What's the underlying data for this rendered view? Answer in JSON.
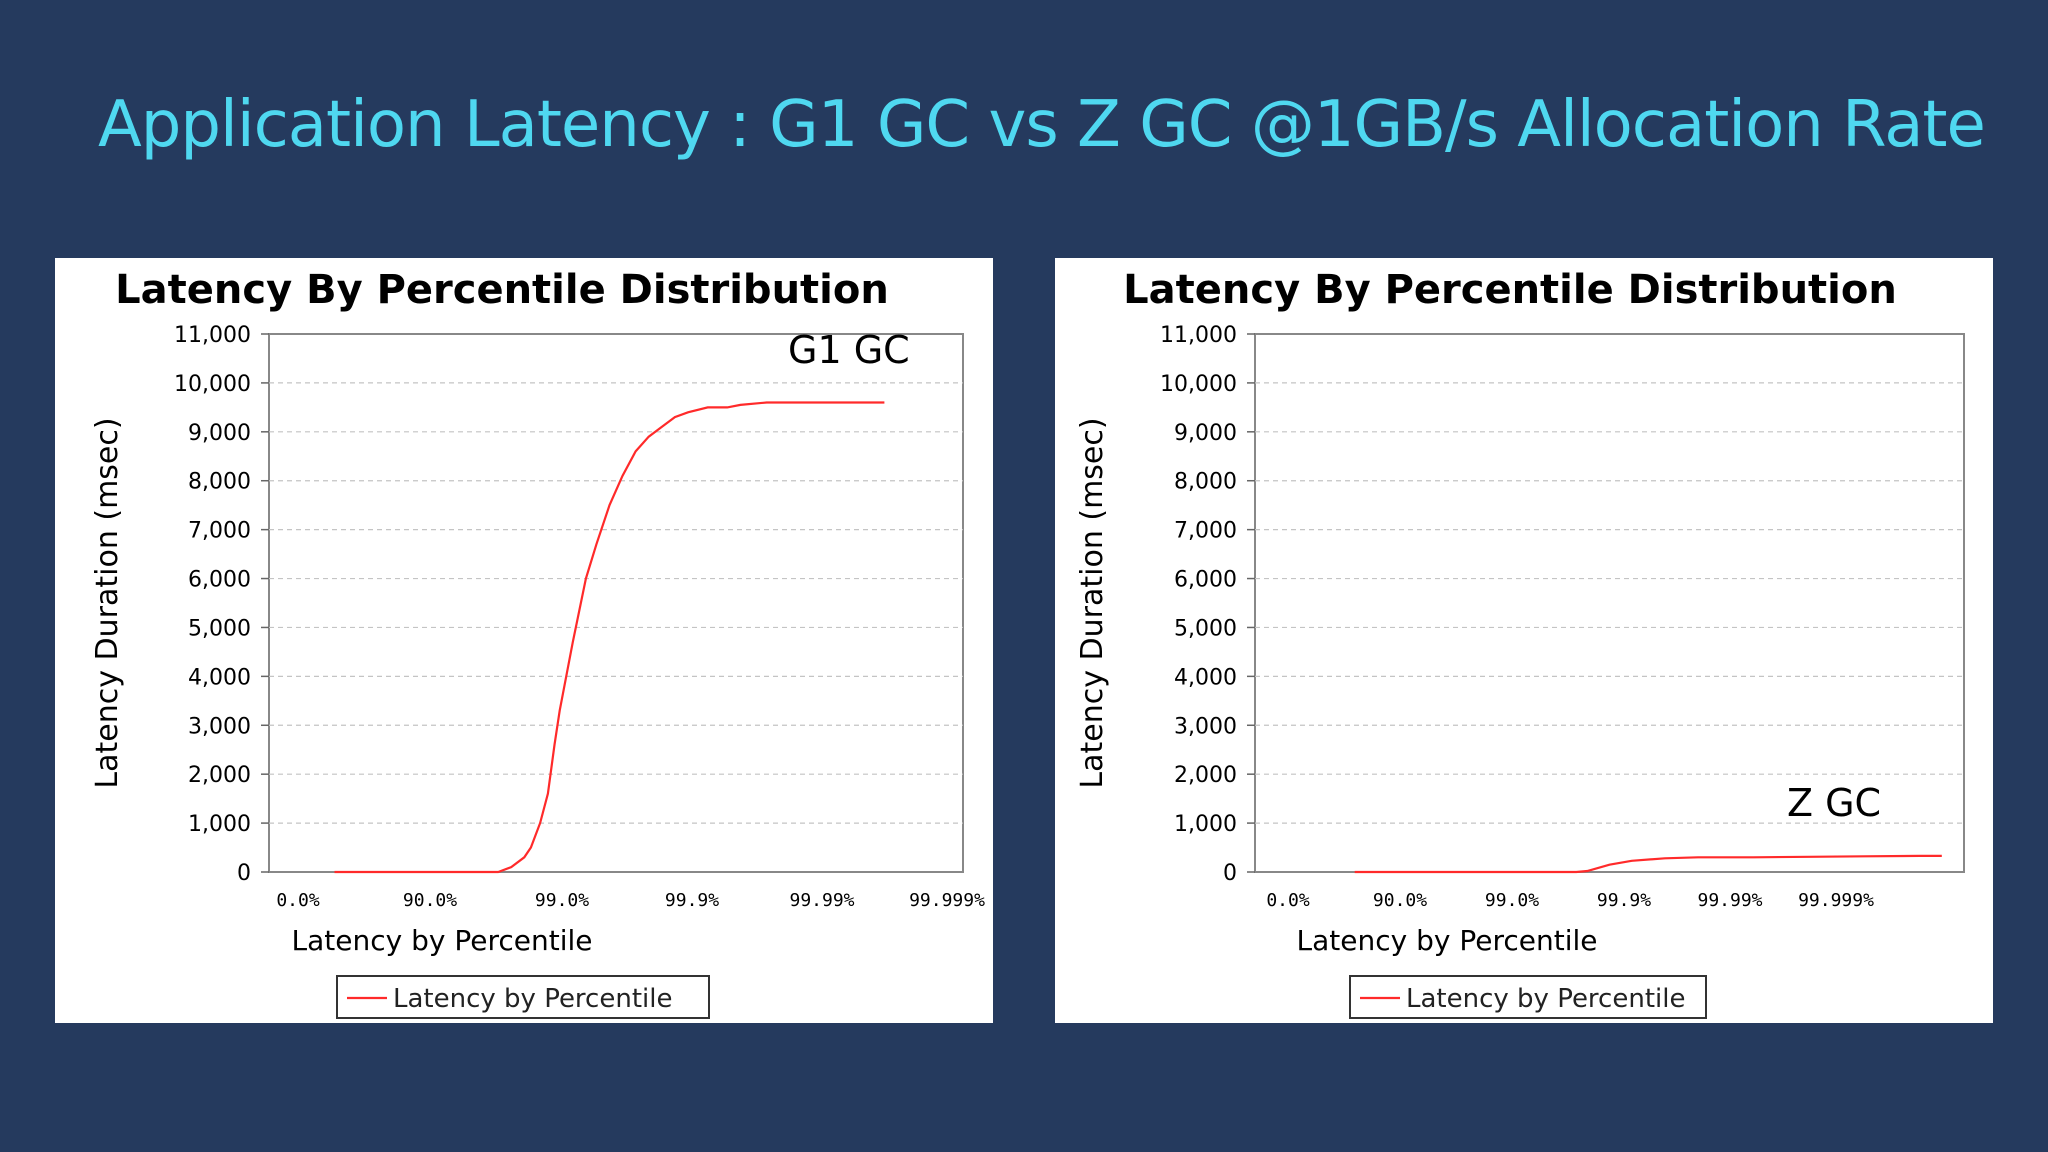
{
  "slide": {
    "title": "Application Latency : G1 GC vs Z GC @1GB/s Allocation Rate",
    "background": "#253a5e",
    "title_color": "#4fd8f0"
  },
  "chart_data": [
    {
      "type": "line",
      "title": "Latency By Percentile Distribution",
      "annotation": "G1 GC",
      "xlabel": "Latency by Percentile",
      "ylabel": "Latency Duration (msec)",
      "legend": "Latency by Percentile",
      "legend_position": "bottom",
      "grid": true,
      "line_color": "#ff2a2a",
      "ylim": [
        0,
        11000
      ],
      "xlim": [
        0,
        5.3
      ],
      "yticks": [
        0,
        1000,
        2000,
        3000,
        4000,
        5000,
        6000,
        7000,
        8000,
        9000,
        10000,
        11000
      ],
      "ytick_labels": [
        "0",
        "1,000",
        "2,000",
        "3,000",
        "4,000",
        "5,000",
        "6,000",
        "7,000",
        "8,000",
        "9,000",
        "10,000",
        "11,000"
      ],
      "xtick_labels": [
        "0.0%",
        "90.0%",
        "99.0%",
        "99.9%",
        "99.99%",
        "99.999%"
      ],
      "series": [
        {
          "name": "Latency by Percentile",
          "points": [
            [
              0.5,
              0
            ],
            [
              1.0,
              0
            ],
            [
              1.5,
              0
            ],
            [
              1.75,
              0
            ],
            [
              1.85,
              100
            ],
            [
              1.95,
              300
            ],
            [
              2.0,
              500
            ],
            [
              2.07,
              1000
            ],
            [
              2.13,
              1600
            ],
            [
              2.18,
              2600
            ],
            [
              2.22,
              3300
            ],
            [
              2.32,
              4700
            ],
            [
              2.42,
              6000
            ],
            [
              2.5,
              6700
            ],
            [
              2.6,
              7500
            ],
            [
              2.7,
              8100
            ],
            [
              2.8,
              8600
            ],
            [
              2.9,
              8900
            ],
            [
              3.0,
              9100
            ],
            [
              3.1,
              9300
            ],
            [
              3.2,
              9400
            ],
            [
              3.35,
              9500
            ],
            [
              3.5,
              9500
            ],
            [
              3.6,
              9550
            ],
            [
              3.8,
              9600
            ],
            [
              4.0,
              9600
            ],
            [
              4.2,
              9600
            ],
            [
              4.5,
              9600
            ],
            [
              4.7,
              9600
            ]
          ]
        }
      ]
    },
    {
      "type": "line",
      "title": "Latency By Percentile Distribution",
      "annotation": "Z GC",
      "xlabel": "Latency by Percentile",
      "ylabel": "Latency Duration (msec)",
      "legend": "Latency by Percentile",
      "legend_position": "bottom",
      "grid": true,
      "line_color": "#ff2a2a",
      "ylim": [
        0,
        11000
      ],
      "xlim": [
        0,
        6.4
      ],
      "yticks": [
        0,
        1000,
        2000,
        3000,
        4000,
        5000,
        6000,
        7000,
        8000,
        9000,
        10000,
        11000
      ],
      "ytick_labels": [
        "0",
        "1,000",
        "2,000",
        "3,000",
        "4,000",
        "5,000",
        "6,000",
        "7,000",
        "8,000",
        "9,000",
        "10,000",
        "11,000"
      ],
      "xtick_labels": [
        "0.0%",
        "90.0%",
        "99.0%",
        "99.9%",
        "99.99%",
        "99.999%"
      ],
      "series": [
        {
          "name": "Latency by Percentile",
          "points": [
            [
              0.9,
              0
            ],
            [
              1.5,
              0
            ],
            [
              2.0,
              0
            ],
            [
              2.5,
              0
            ],
            [
              2.9,
              0
            ],
            [
              3.0,
              20
            ],
            [
              3.2,
              150
            ],
            [
              3.4,
              230
            ],
            [
              3.7,
              280
            ],
            [
              4.0,
              300
            ],
            [
              4.5,
              300
            ],
            [
              5.0,
              310
            ],
            [
              5.5,
              320
            ],
            [
              6.0,
              330
            ],
            [
              6.2,
              330
            ]
          ]
        }
      ]
    }
  ]
}
